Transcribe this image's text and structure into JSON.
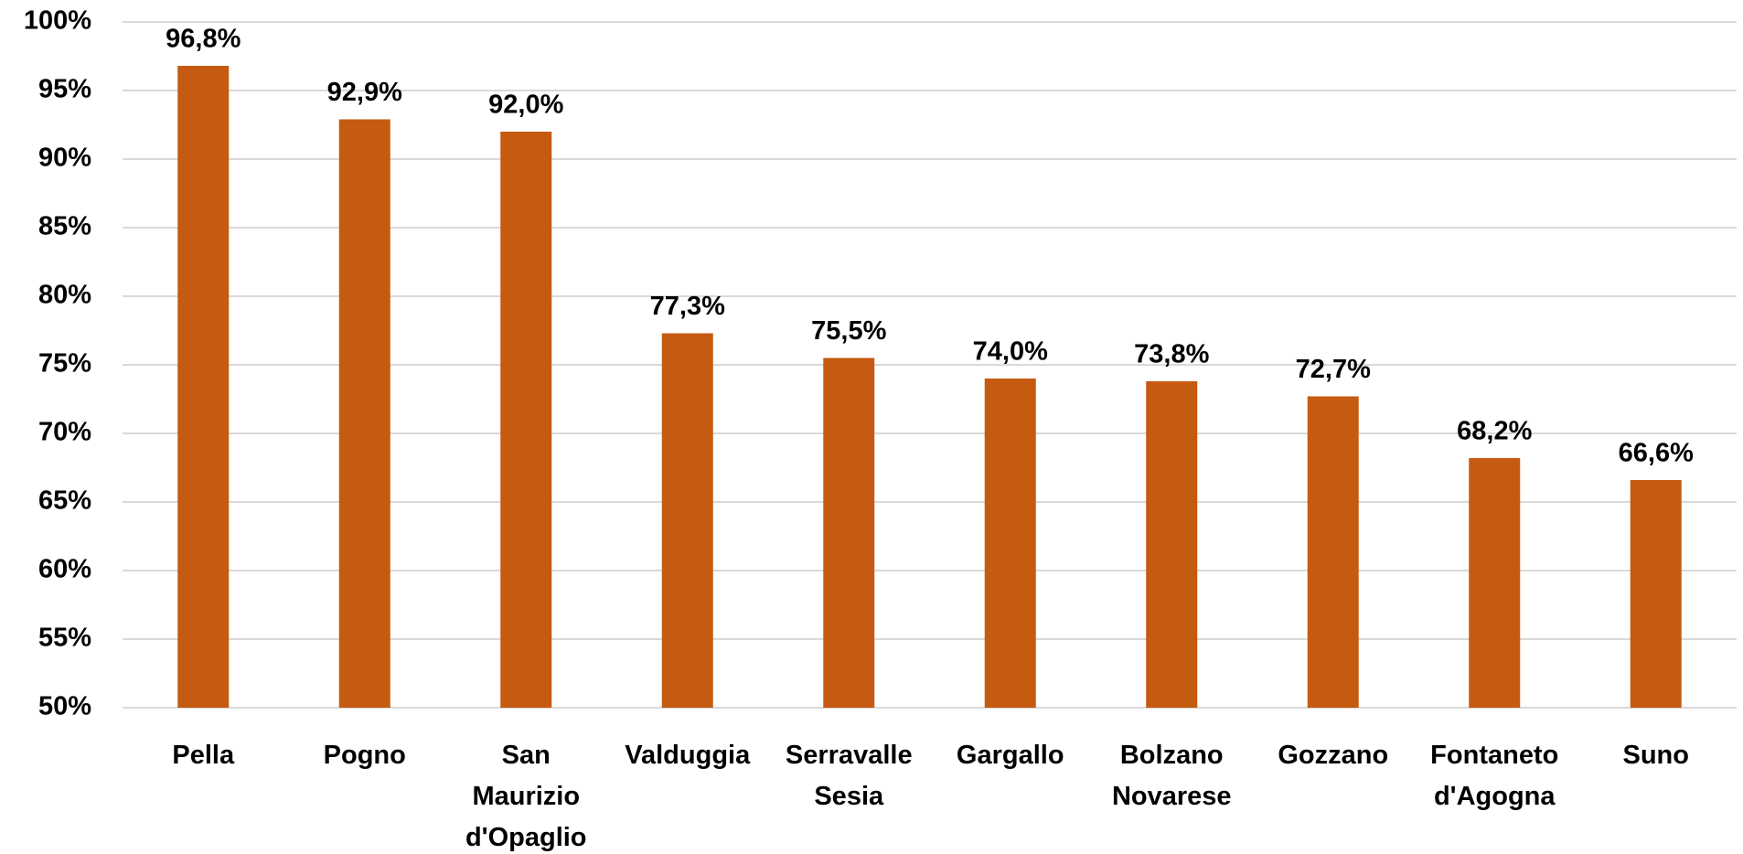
{
  "chart_data": {
    "type": "bar",
    "categories": [
      "Pella",
      "Pogno",
      "San Maurizio d'Opaglio",
      "Valduggia",
      "Serravalle Sesia",
      "Gargallo",
      "Bolzano Novarese",
      "Gozzano",
      "Fontaneto d'Agogna",
      "Suno"
    ],
    "values": [
      96.8,
      92.9,
      92.0,
      77.3,
      75.5,
      74.0,
      73.8,
      72.7,
      68.2,
      66.6
    ],
    "value_labels": [
      "96,8%",
      "92,9%",
      "92,0%",
      "77,3%",
      "75,5%",
      "74,0%",
      "73,8%",
      "72,7%",
      "68,2%",
      "66,6%"
    ],
    "color": "#c55a11",
    "ylim": [
      50,
      100
    ],
    "yticks": [
      {
        "value": 50,
        "label": "50%"
      },
      {
        "value": 55,
        "label": "55%"
      },
      {
        "value": 60,
        "label": "60%"
      },
      {
        "value": 65,
        "label": "65%"
      },
      {
        "value": 70,
        "label": "70%"
      },
      {
        "value": 75,
        "label": "75%"
      },
      {
        "value": 80,
        "label": "80%"
      },
      {
        "value": 85,
        "label": "85%"
      },
      {
        "value": 90,
        "label": "90%"
      },
      {
        "value": 95,
        "label": "95%"
      },
      {
        "value": 100,
        "label": "100%"
      }
    ],
    "grid": true
  }
}
